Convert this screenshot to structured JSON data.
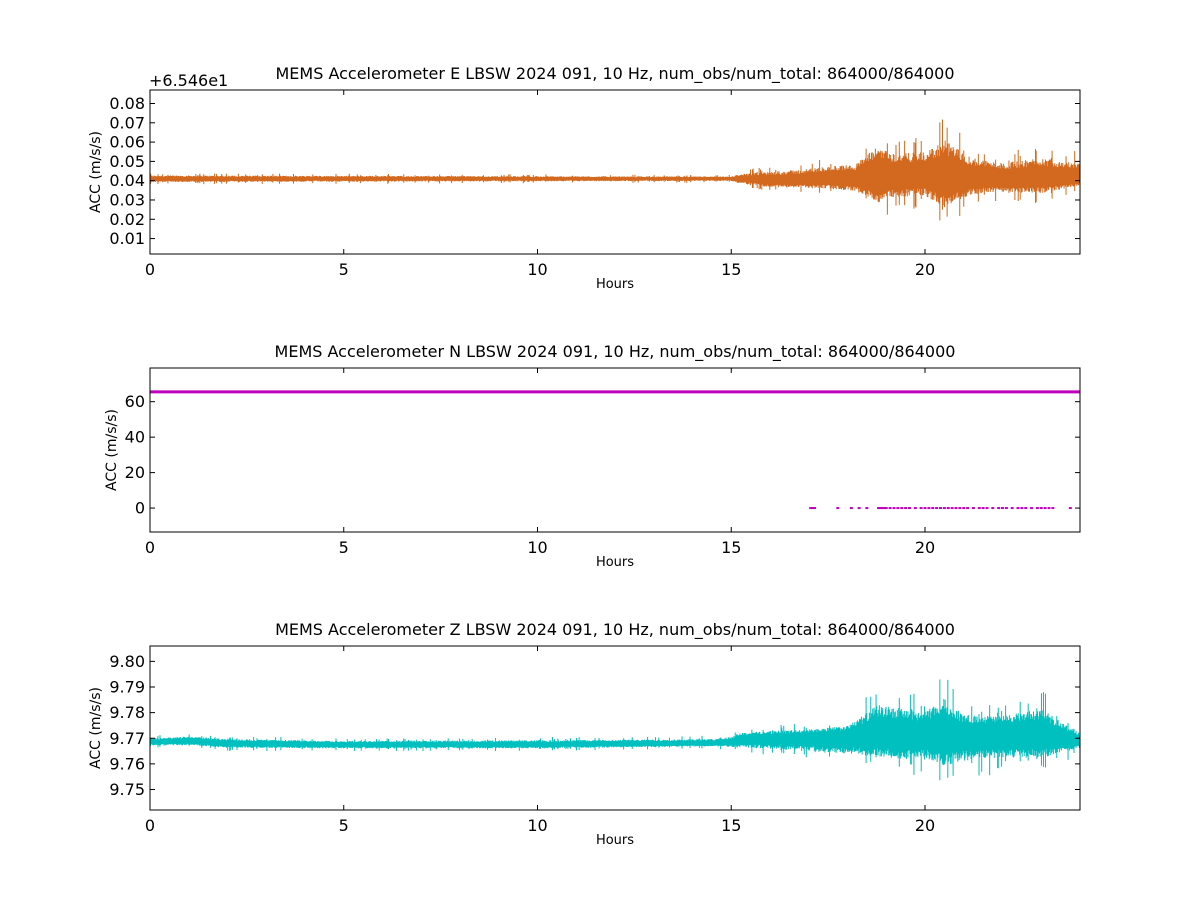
{
  "chart_data": [
    {
      "type": "line",
      "title": "MEMS Accelerometer E LBSW 2024 091, 10 Hz, num_obs/num_total: 864000/864000",
      "xlabel": "Hours",
      "ylabel": "ACC (m/s/s)",
      "offset_label": "+6.546e1",
      "xlim": [
        0,
        24
      ],
      "ylim": [
        0.002,
        0.087
      ],
      "x_ticks": [
        0,
        5,
        10,
        15,
        20
      ],
      "x_tick_labels": [
        "0",
        "5",
        "10",
        "15",
        "20"
      ],
      "y_ticks": [
        0.01,
        0.02,
        0.03,
        0.04,
        0.05,
        0.06,
        0.07,
        0.08
      ],
      "y_tick_labels": [
        "0.01",
        "0.02",
        "0.03",
        "0.04",
        "0.05",
        "0.06",
        "0.07",
        "0.08"
      ],
      "color": "#D2691E",
      "series": [
        {
          "x_hours": [
            0,
            15,
            15.2,
            16,
            16.8,
            17.5,
            18.2,
            18.8,
            19.2,
            20,
            20.5,
            21.2,
            22,
            23,
            24
          ],
          "center": [
            0.041,
            0.041,
            0.041,
            0.04,
            0.04,
            0.041,
            0.041,
            0.042,
            0.042,
            0.042,
            0.042,
            0.041,
            0.041,
            0.041,
            0.041
          ],
          "max": [
            0.044,
            0.043,
            0.045,
            0.048,
            0.05,
            0.052,
            0.054,
            0.07,
            0.063,
            0.064,
            0.075,
            0.06,
            0.055,
            0.06,
            0.055
          ],
          "min": [
            0.038,
            0.039,
            0.037,
            0.034,
            0.034,
            0.032,
            0.03,
            0.019,
            0.024,
            0.025,
            0.014,
            0.027,
            0.029,
            0.028,
            0.035
          ]
        }
      ]
    },
    {
      "type": "line",
      "title": "MEMS Accelerometer N LBSW 2024 091, 10 Hz, num_obs/num_total: 864000/864000",
      "xlabel": "Hours",
      "ylabel": "ACC (m/s/s)",
      "xlim": [
        0,
        24
      ],
      "ylim": [
        -13.5,
        79
      ],
      "x_ticks": [
        0,
        5,
        10,
        15,
        20
      ],
      "x_tick_labels": [
        "0",
        "5",
        "10",
        "15",
        "20"
      ],
      "y_ticks": [
        0,
        20,
        40,
        60
      ],
      "y_tick_labels": [
        "0",
        "20",
        "40",
        "60"
      ],
      "color": "#BF00BF",
      "series": [
        {
          "main_level": 65.5,
          "dropout_level": 0,
          "dropout_hours": [
            17.05,
            17.1,
            17.15,
            17.75,
            18.1,
            18.3,
            18.5,
            18.8,
            18.85,
            18.9,
            18.95,
            19.0,
            19.1,
            19.2,
            19.3,
            19.4,
            19.5,
            19.6,
            19.75,
            19.9,
            20.0,
            20.1,
            20.2,
            20.3,
            20.4,
            20.5,
            20.6,
            20.7,
            20.8,
            20.9,
            21.0,
            21.1,
            21.25,
            21.4,
            21.5,
            21.6,
            21.75,
            21.9,
            22.0,
            22.1,
            22.25,
            22.4,
            22.5,
            22.6,
            22.75,
            22.9,
            23.0,
            23.1,
            23.2,
            23.3,
            23.75
          ]
        }
      ]
    },
    {
      "type": "line",
      "title": "MEMS Accelerometer Z LBSW 2024 091, 10 Hz, num_obs/num_total: 864000/864000",
      "xlabel": "Hours",
      "ylabel": "ACC (m/s/s)",
      "xlim": [
        0,
        24
      ],
      "ylim": [
        9.742,
        9.806
      ],
      "x_ticks": [
        0,
        5,
        10,
        15,
        20
      ],
      "x_tick_labels": [
        "0",
        "5",
        "10",
        "15",
        "20"
      ],
      "y_ticks": [
        9.75,
        9.76,
        9.77,
        9.78,
        9.79,
        9.8
      ],
      "y_tick_labels": [
        "9.75",
        "9.76",
        "9.77",
        "9.78",
        "9.79",
        "9.80"
      ],
      "color": "#00BFBF",
      "series": [
        {
          "x_hours": [
            0,
            1,
            2,
            5,
            10,
            14.5,
            15,
            15.2,
            16,
            17,
            18,
            18.8,
            19.5,
            20,
            20.5,
            21,
            22,
            23,
            24
          ],
          "center": [
            9.7685,
            9.769,
            9.768,
            9.7675,
            9.7675,
            9.768,
            9.7685,
            9.7695,
            9.77,
            9.77,
            9.7705,
            9.771,
            9.771,
            9.771,
            9.7705,
            9.771,
            9.7715,
            9.771,
            9.769
          ],
          "max": [
            9.771,
            9.772,
            9.771,
            9.77,
            9.7705,
            9.771,
            9.772,
            9.774,
            9.775,
            9.776,
            9.778,
            9.792,
            9.789,
            9.787,
            9.797,
            9.785,
            9.784,
            9.789,
            9.774
          ],
          "min": [
            9.766,
            9.766,
            9.765,
            9.765,
            9.765,
            9.766,
            9.765,
            9.764,
            9.763,
            9.761,
            9.759,
            9.757,
            9.755,
            9.756,
            9.751,
            9.754,
            9.756,
            9.756,
            9.764
          ]
        }
      ]
    }
  ]
}
